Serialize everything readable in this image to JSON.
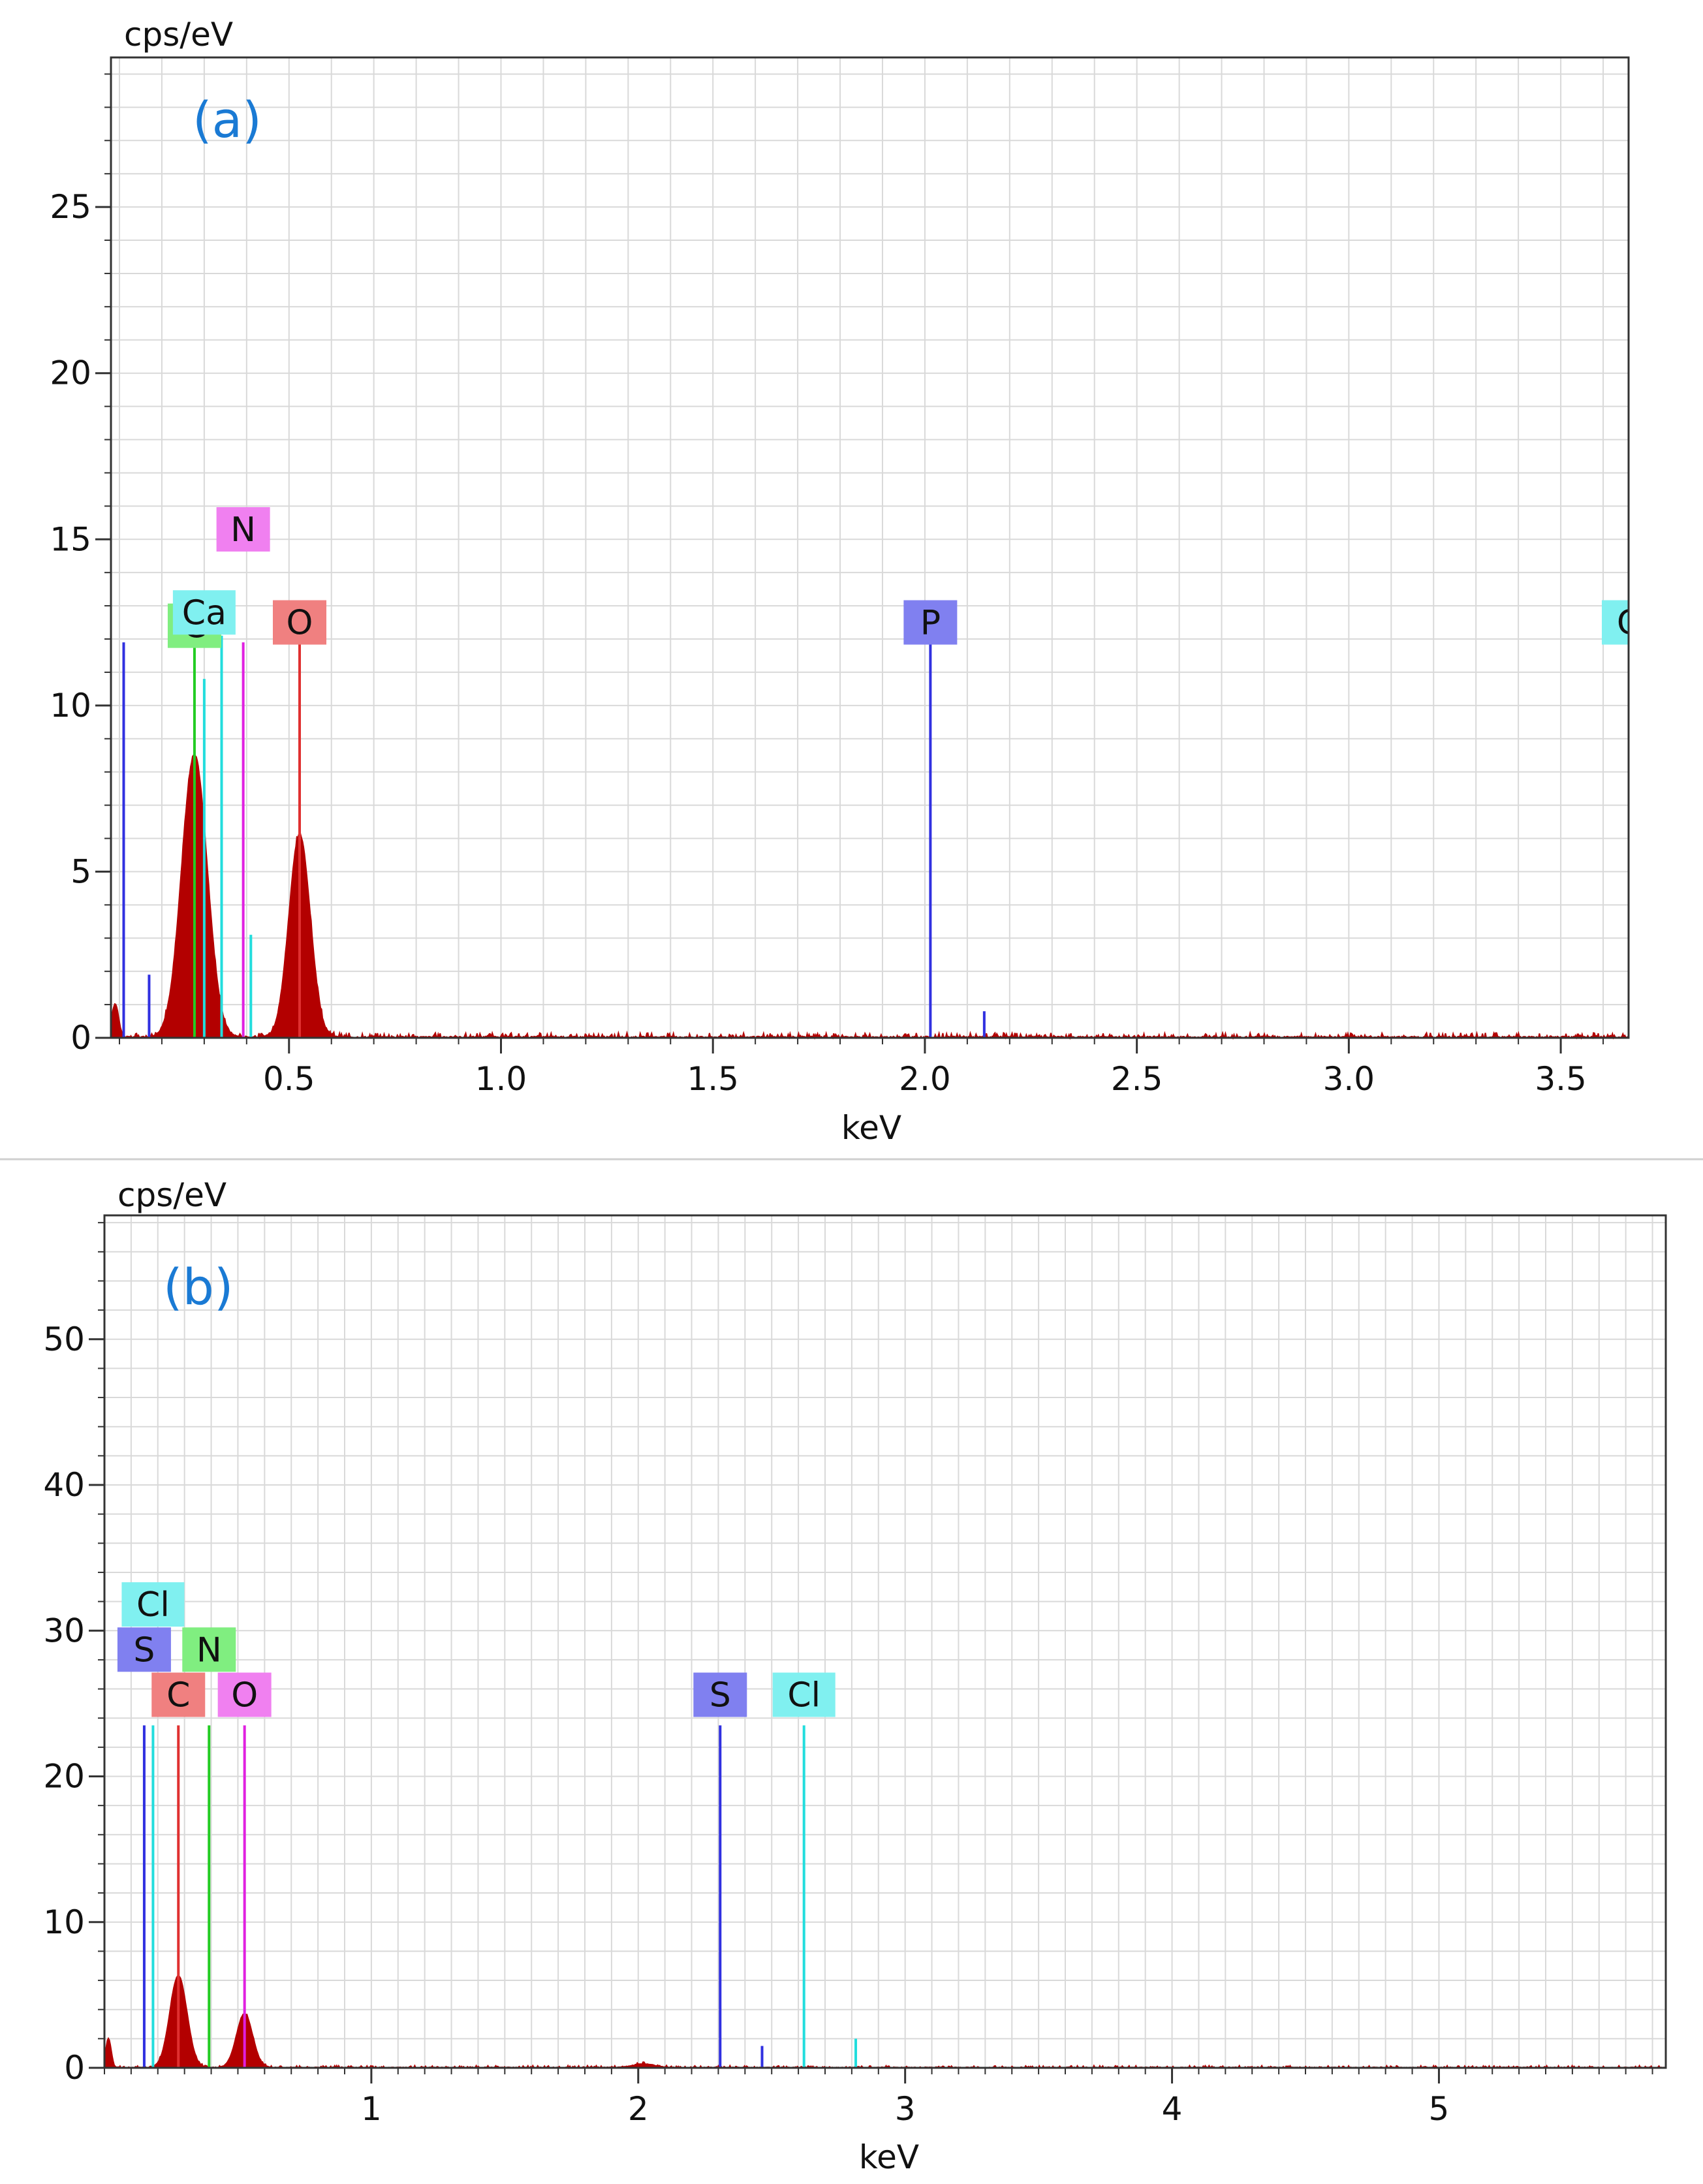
{
  "chart_data": [
    {
      "type": "line",
      "title": "(a)",
      "xlabel": "keV",
      "ylabel": "cps/eV",
      "xlim": [
        0.08,
        3.66
      ],
      "ylim": [
        0,
        29.5
      ],
      "grid": true,
      "x_ticks": [
        0.5,
        1.0,
        1.5,
        2.0,
        2.5,
        3.0,
        3.5
      ],
      "x_tick_labels": [
        "0.5",
        "1.0",
        "1.5",
        "2.0",
        "2.5",
        "3.0",
        "3.5"
      ],
      "y_ticks": [
        0,
        5,
        10,
        15,
        20,
        25
      ],
      "y_tick_labels": [
        "0",
        "5",
        "10",
        "15",
        "20",
        "25"
      ],
      "x_minor_step": 0.1,
      "y_minor_step": 1,
      "spectrum_color": "#b30000",
      "spectrum_peaks": [
        {
          "x": 0.09,
          "height": 1.0,
          "width": 0.008
        },
        {
          "x": 0.277,
          "height": 8.5,
          "width": 0.03
        },
        {
          "x": 0.525,
          "height": 6.1,
          "width": 0.025
        }
      ],
      "noise_level": 0.15,
      "markers": [
        {
          "x": 0.11,
          "height": 11.9,
          "color": "#3030e0"
        },
        {
          "x": 0.17,
          "height": 1.9,
          "color": "#3030e0"
        },
        {
          "x": 0.277,
          "height": 12.1,
          "color": "#22cc22"
        },
        {
          "x": 0.3,
          "height": 10.8,
          "color": "#22dddd"
        },
        {
          "x": 0.341,
          "height": 12.1,
          "color": "#22dddd"
        },
        {
          "x": 0.392,
          "height": 11.9,
          "color": "#e020e0"
        },
        {
          "x": 0.41,
          "height": 3.1,
          "color": "#22dddd"
        },
        {
          "x": 0.525,
          "height": 12.1,
          "color": "#e03030"
        },
        {
          "x": 2.013,
          "height": 12.1,
          "color": "#3030e0"
        },
        {
          "x": 2.14,
          "height": 0.8,
          "color": "#3030e0"
        }
      ],
      "labels": [
        {
          "text": "C",
          "x": 0.277,
          "y": 12.4,
          "bg": "#80ee80"
        },
        {
          "text": "Ca",
          "x": 0.3,
          "y": 12.8,
          "bg": "#80f0f0"
        },
        {
          "text": "N",
          "x": 0.392,
          "y": 15.3,
          "bg": "#f080f0"
        },
        {
          "text": "O",
          "x": 0.525,
          "y": 12.5,
          "bg": "#f08080"
        },
        {
          "text": "P",
          "x": 2.013,
          "y": 12.5,
          "bg": "#8080f0"
        },
        {
          "text": "C",
          "x": 3.66,
          "y": 12.5,
          "bg": "#80f0f0"
        }
      ]
    },
    {
      "type": "line",
      "title": "(b)",
      "xlabel": "keV",
      "ylabel": "cps/eV",
      "xlim": [
        0.0,
        5.85
      ],
      "ylim": [
        0,
        58.5
      ],
      "grid": true,
      "x_ticks": [
        1,
        2,
        3,
        4,
        5
      ],
      "x_tick_labels": [
        "1",
        "2",
        "3",
        "4",
        "5"
      ],
      "y_ticks": [
        0,
        10,
        20,
        30,
        40,
        50
      ],
      "y_tick_labels": [
        "0",
        "10",
        "20",
        "30",
        "40",
        "50"
      ],
      "x_minor_step": 0.1,
      "y_minor_step": 2,
      "spectrum_color": "#b30000",
      "spectrum_peaks": [
        {
          "x": 0.015,
          "height": 2.0,
          "width": 0.01
        },
        {
          "x": 0.277,
          "height": 6.3,
          "width": 0.032
        },
        {
          "x": 0.525,
          "height": 3.7,
          "width": 0.03
        },
        {
          "x": 2.02,
          "height": 0.25,
          "width": 0.04
        }
      ],
      "noise_level": 0.15,
      "markers": [
        {
          "x": 0.149,
          "height": 23.5,
          "color": "#3030e0"
        },
        {
          "x": 0.182,
          "height": 23.5,
          "color": "#22dddd"
        },
        {
          "x": 0.277,
          "height": 23.5,
          "color": "#e03030"
        },
        {
          "x": 0.392,
          "height": 23.5,
          "color": "#22cc22"
        },
        {
          "x": 0.525,
          "height": 23.5,
          "color": "#e020e0"
        },
        {
          "x": 2.307,
          "height": 23.5,
          "color": "#3030e0"
        },
        {
          "x": 2.464,
          "height": 1.5,
          "color": "#3030e0"
        },
        {
          "x": 2.621,
          "height": 23.5,
          "color": "#22dddd"
        },
        {
          "x": 2.815,
          "height": 2.0,
          "color": "#22dddd"
        }
      ],
      "labels": [
        {
          "text": "Cl",
          "x": 0.182,
          "y": 31.8,
          "bg": "#80f0f0"
        },
        {
          "text": "S",
          "x": 0.149,
          "y": 28.7,
          "bg": "#8080f0"
        },
        {
          "text": "N",
          "x": 0.392,
          "y": 28.7,
          "bg": "#80ee80"
        },
        {
          "text": "C",
          "x": 0.277,
          "y": 25.6,
          "bg": "#f08080"
        },
        {
          "text": "O",
          "x": 0.525,
          "y": 25.6,
          "bg": "#f080f0"
        },
        {
          "text": "S",
          "x": 2.307,
          "y": 25.6,
          "bg": "#8080f0"
        },
        {
          "text": "Cl",
          "x": 2.621,
          "y": 25.6,
          "bg": "#80f0f0"
        }
      ]
    }
  ]
}
